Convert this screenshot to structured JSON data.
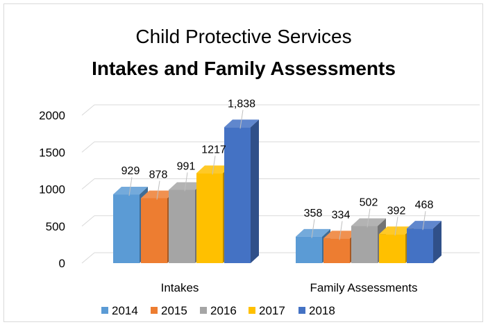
{
  "chart_data": {
    "type": "bar",
    "title": "Child Protective Services",
    "subtitle": "Intakes and Family Assessments",
    "categories": [
      "Intakes",
      "Family Assessments"
    ],
    "series": [
      {
        "name": "2014",
        "color": "#5b9bd5",
        "values": [
          929,
          358
        ],
        "labels": [
          "929",
          "358"
        ]
      },
      {
        "name": "2015",
        "color": "#ed7d31",
        "values": [
          878,
          334
        ],
        "labels": [
          "878",
          "334"
        ]
      },
      {
        "name": "2016",
        "color": "#a5a5a5",
        "values": [
          991,
          502
        ],
        "labels": [
          "991",
          "502"
        ]
      },
      {
        "name": "2017",
        "color": "#ffc000",
        "values": [
          1217,
          392
        ],
        "labels": [
          "1217",
          "392"
        ]
      },
      {
        "name": "2018",
        "color": "#4472c4",
        "values": [
          1838,
          468
        ],
        "labels": [
          "1,838",
          "468"
        ]
      }
    ],
    "y_ticks": [
      "0",
      "500",
      "1000",
      "1500",
      "2000"
    ],
    "ylim": [
      0,
      2000
    ],
    "grid": true,
    "legend_position": "bottom",
    "style": "3d-clustered-column"
  }
}
